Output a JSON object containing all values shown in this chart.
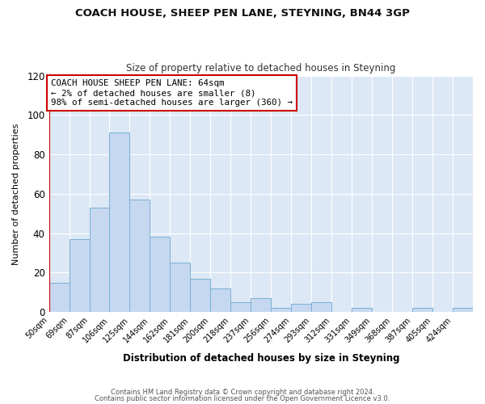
{
  "title1": "COACH HOUSE, SHEEP PEN LANE, STEYNING, BN44 3GP",
  "title2": "Size of property relative to detached houses in Steyning",
  "xlabel": "Distribution of detached houses by size in Steyning",
  "ylabel": "Number of detached properties",
  "bar_labels": [
    "50sqm",
    "69sqm",
    "87sqm",
    "106sqm",
    "125sqm",
    "144sqm",
    "162sqm",
    "181sqm",
    "200sqm",
    "218sqm",
    "237sqm",
    "256sqm",
    "274sqm",
    "293sqm",
    "312sqm",
    "331sqm",
    "349sqm",
    "368sqm",
    "387sqm",
    "405sqm",
    "424sqm"
  ],
  "bar_values": [
    15,
    37,
    53,
    91,
    57,
    38,
    25,
    17,
    12,
    5,
    7,
    2,
    4,
    5,
    0,
    2,
    0,
    0,
    2,
    0,
    2
  ],
  "bar_color": "#c5d8f0",
  "bar_edge_color": "#7aafd4",
  "ylim": [
    0,
    120
  ],
  "yticks": [
    0,
    20,
    40,
    60,
    80,
    100,
    120
  ],
  "annotation_line1": "COACH HOUSE SHEEP PEN LANE: 64sqm",
  "annotation_line2": "← 2% of detached houses are smaller (8)",
  "annotation_line3": "98% of semi-detached houses are larger (360) →",
  "vline_color": "#cc0000",
  "box_color": "#cc0000",
  "bg_color": "#ffffff",
  "plot_bg_color": "#dce8f5",
  "grid_color": "#ffffff",
  "footnote1": "Contains HM Land Registry data © Crown copyright and database right 2024.",
  "footnote2": "Contains public sector information licensed under the Open Government Licence v3.0."
}
